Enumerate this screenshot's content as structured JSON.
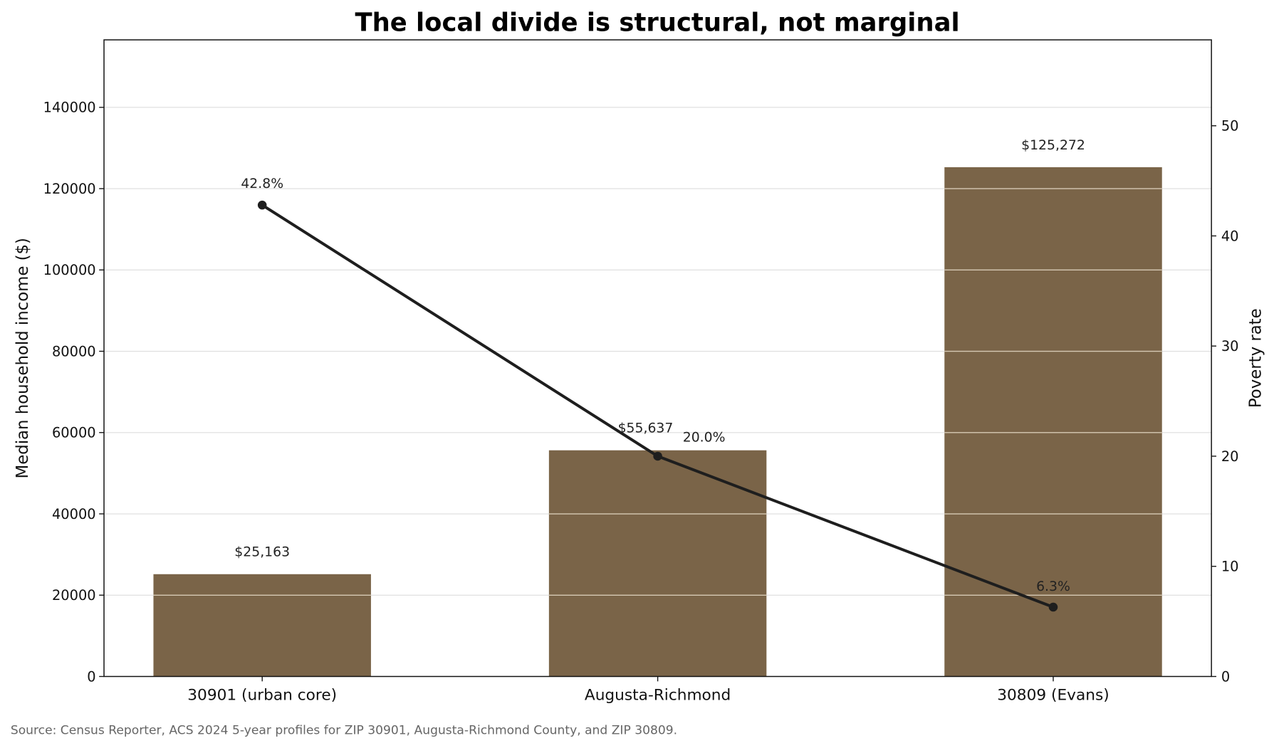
{
  "chart_data": {
    "type": "bar+line",
    "title": "The local divide is structural, not marginal",
    "categories": [
      "30901 (urban core)",
      "Augusta-Richmond",
      "30809 (Evans)"
    ],
    "series": [
      {
        "axis": "left",
        "kind": "bar",
        "values": [
          25163,
          55637,
          125272
        ],
        "labels": [
          "$25,163",
          "$55,637",
          "$125,272"
        ],
        "color": "#7a6448"
      },
      {
        "axis": "right",
        "kind": "line",
        "values": [
          42.8,
          20.0,
          6.3
        ],
        "labels": [
          "42.8%",
          "20.0%",
          "6.3%"
        ],
        "color": "#1e1e1e"
      }
    ],
    "ylabel": "Median household income ($)",
    "y2label": "Poverty rate",
    "ylim": [
      0,
      156600
    ],
    "y2lim": [
      0,
      57.8
    ],
    "yticks": [
      0,
      20000,
      40000,
      60000,
      80000,
      100000,
      120000,
      140000
    ],
    "y2ticks": [
      0,
      10,
      20,
      30,
      40,
      50
    ],
    "grid": true,
    "source": "Source: Census Reporter, ACS 2024 5-year profiles for ZIP 30901, Augusta-Richmond County, and ZIP 30809."
  }
}
